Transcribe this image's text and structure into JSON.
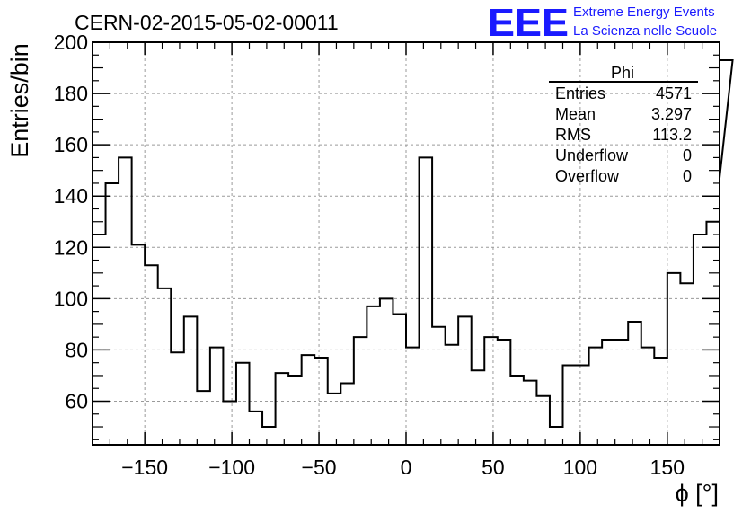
{
  "chart_data": {
    "type": "histogram",
    "title": "CERN-02-2015-05-02-00011",
    "xlabel": "ϕ [°]",
    "ylabel": "Entries/bin",
    "xlim": [
      -180,
      180
    ],
    "ylim": [
      43,
      200
    ],
    "x_ticks": [
      -150,
      -100,
      -50,
      0,
      50,
      100,
      150
    ],
    "y_ticks": [
      60,
      80,
      100,
      120,
      140,
      160,
      180,
      200
    ],
    "x_tick_labels": [
      "−150",
      "−100",
      "−50",
      "0",
      "50",
      "100",
      "150"
    ],
    "y_tick_labels": [
      "60",
      "80",
      "100",
      "120",
      "140",
      "160",
      "180",
      "200"
    ],
    "grid": true,
    "bin_edges_start": -180,
    "bin_width": 7.5,
    "counts": [
      125,
      145,
      155,
      121,
      113,
      104,
      79,
      93,
      64,
      81,
      60,
      75,
      56,
      50,
      71,
      70,
      78,
      77,
      63,
      67,
      85,
      97,
      100,
      94,
      81,
      155,
      89,
      82,
      93,
      72,
      85,
      84,
      70,
      68,
      62,
      50,
      74,
      74,
      81,
      84,
      84,
      91,
      81,
      77,
      110,
      106,
      125,
      130,
      147
    ],
    "last_bin_value": 193
  },
  "stats_box": {
    "name": "Phi",
    "rows": [
      {
        "label": "Entries",
        "value": "4571"
      },
      {
        "label": "Mean",
        "value": "3.297"
      },
      {
        "label": "RMS",
        "value": "113.2"
      },
      {
        "label": "Underflow",
        "value": "0"
      },
      {
        "label": "Overflow",
        "value": "0"
      }
    ]
  },
  "logo": {
    "mark": "EEE",
    "line1": "Extreme Energy Events",
    "line2": "La Scienza nelle Scuole",
    "color": "#1a1aff"
  },
  "colors": {
    "line": "#000000",
    "grid": "#9a9a9a",
    "logo": "#1a1aff"
  }
}
